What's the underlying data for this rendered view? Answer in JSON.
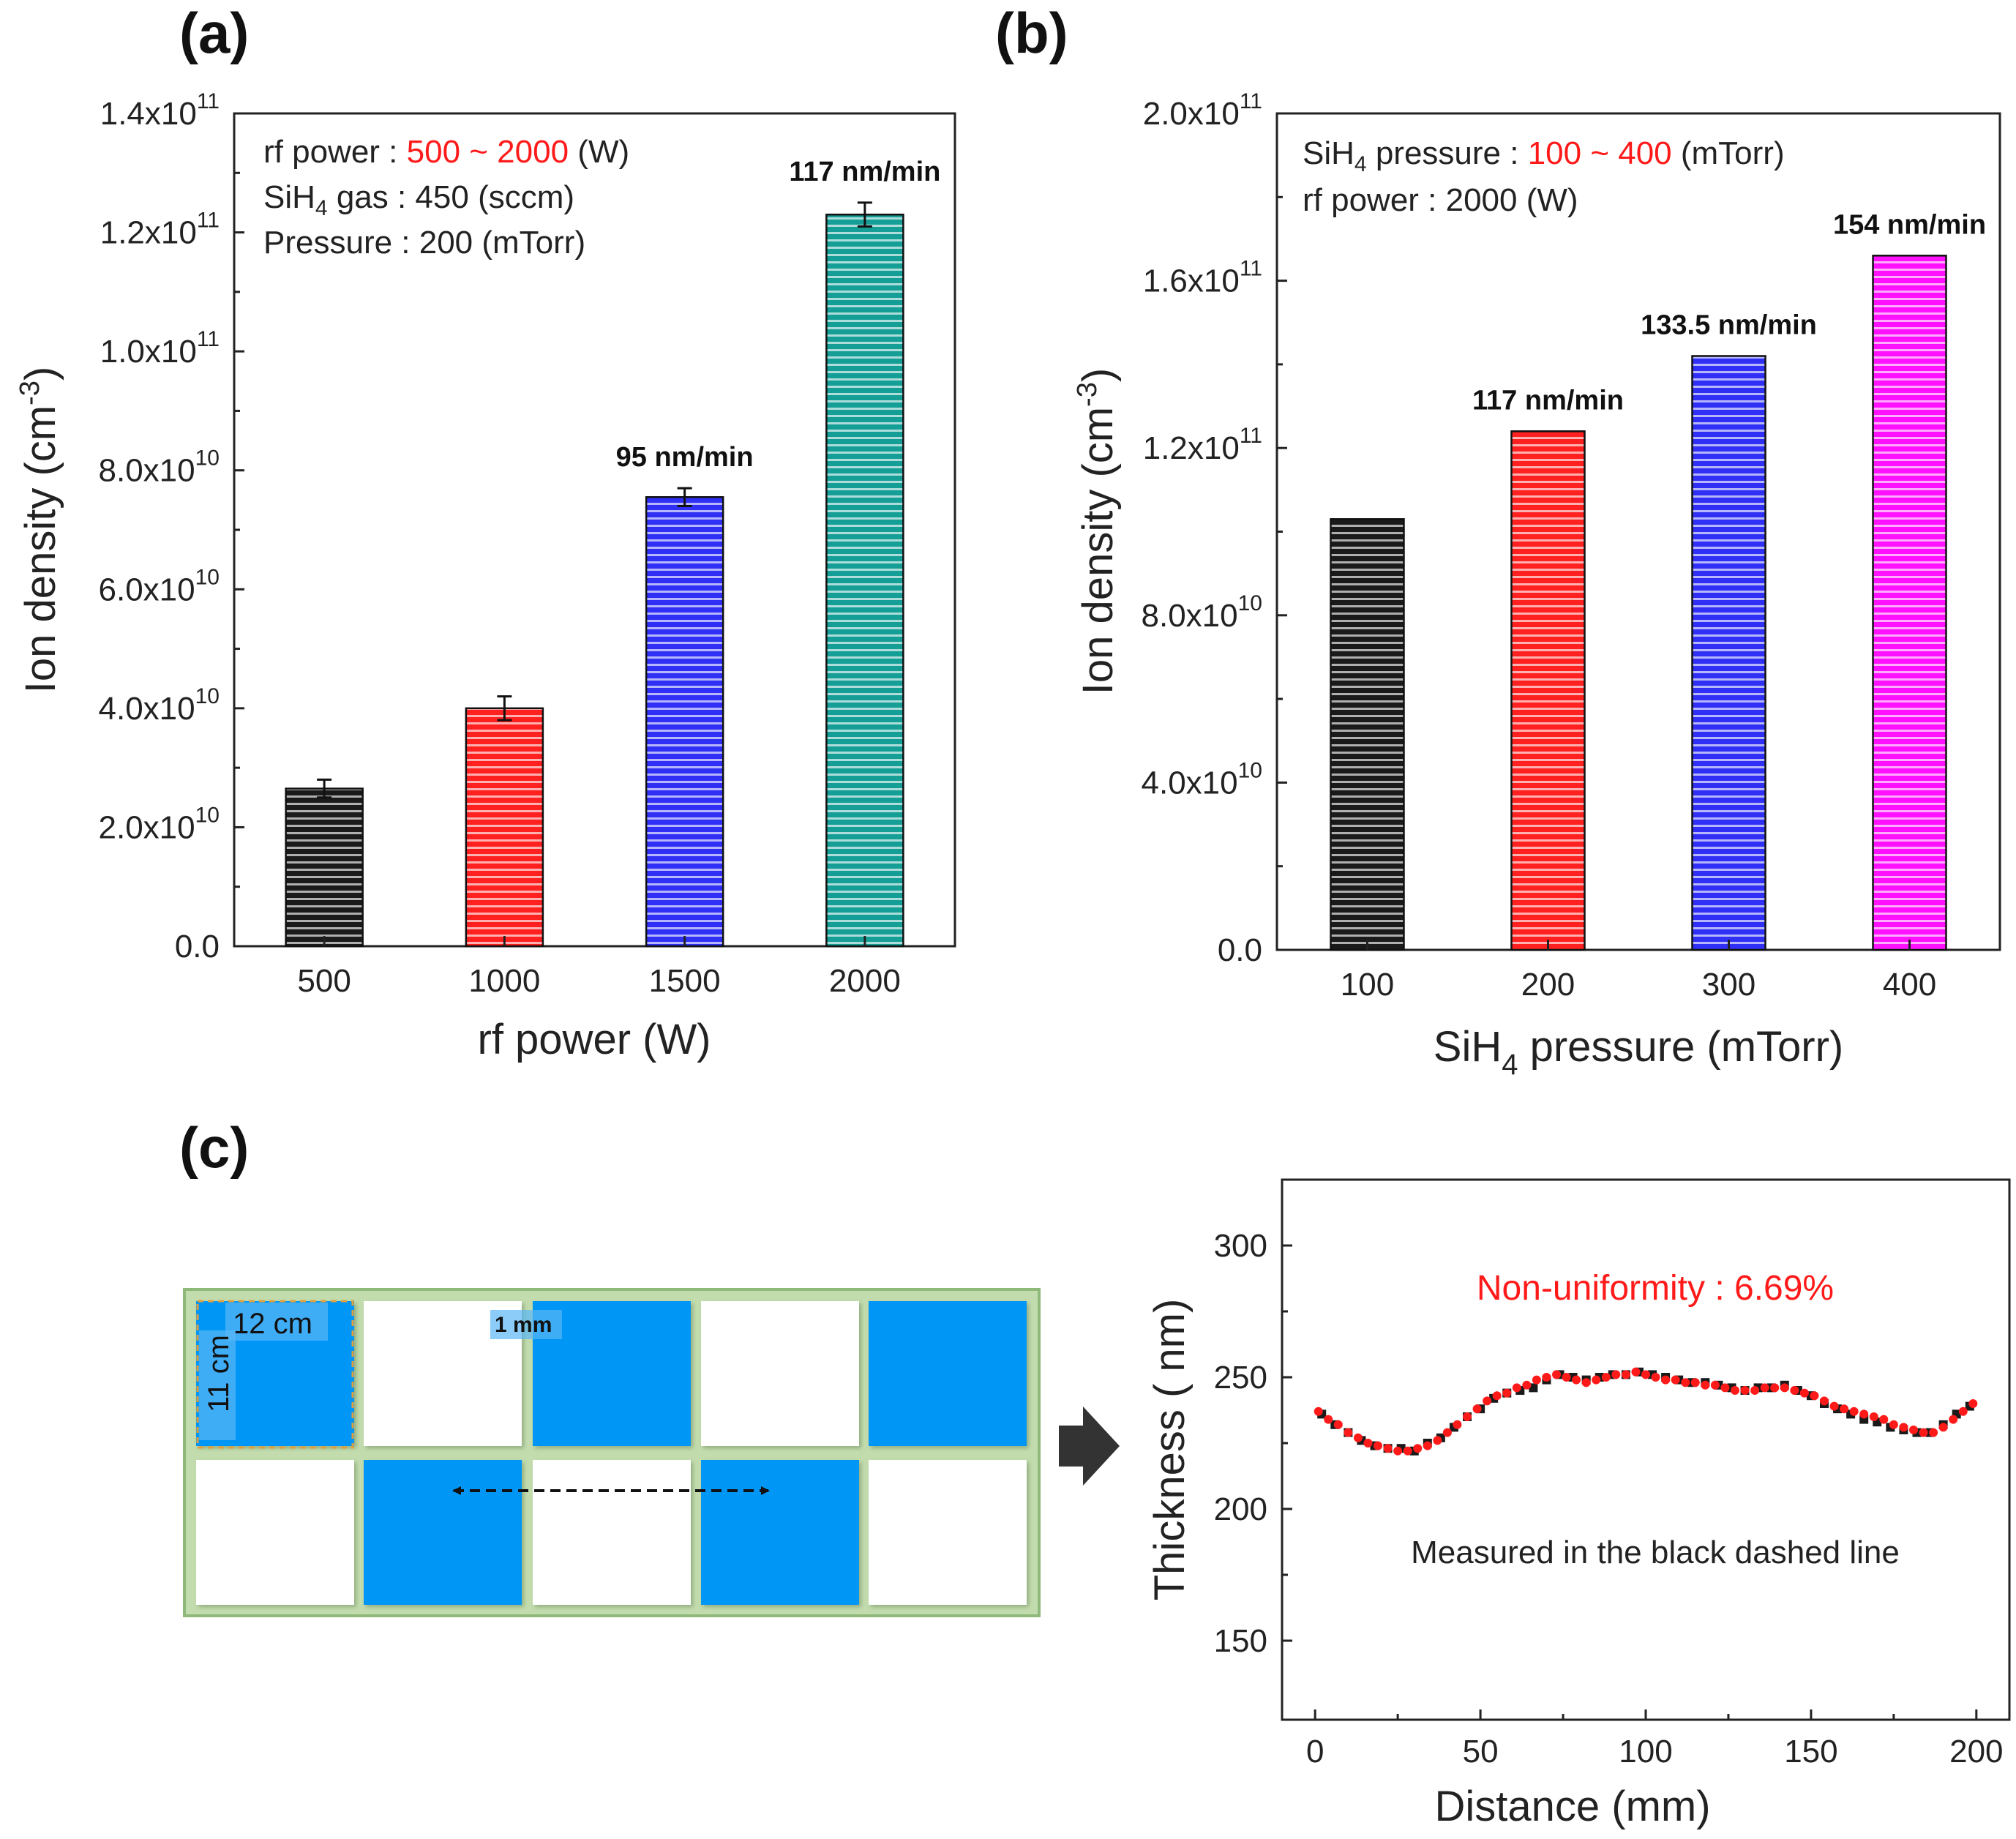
{
  "colors": {
    "black": "#1a1a1a",
    "red": "#ff2020",
    "blue": "#2f2ff5",
    "teal": "#159e96",
    "magenta": "#ff10ff",
    "tile_blue": "#0096f5",
    "mat_green": "#c3dcae",
    "highlight_red": "#ff1a1a"
  },
  "panel_a": {
    "label": "(a)"
  },
  "panel_b": {
    "label": "(b)"
  },
  "panel_c": {
    "label": "(c)"
  },
  "chart_data": [
    {
      "id": "a",
      "type": "bar",
      "categories": [
        "500",
        "1000",
        "1500",
        "2000"
      ],
      "values": [
        26500000000.0,
        40000000000.0,
        75500000000.0,
        123000000000.0
      ],
      "errors": [
        1500000000.0,
        2000000000.0,
        1500000000.0,
        2000000000.0
      ],
      "bar_colors": [
        "#1a1a1a",
        "#ff2020",
        "#2f2ff5",
        "#159e96"
      ],
      "bar_annotations": [
        "",
        "",
        "95 nm/min",
        "117 nm/min"
      ],
      "xlabel": "rf power (W)",
      "ylabel": "Ion density (cm",
      "ylabel_sup": "-3",
      "ylabel_end": ")",
      "ylim": [
        0,
        140000000000.0
      ],
      "yticks": [
        0,
        20000000000.0,
        40000000000.0,
        60000000000.0,
        80000000000.0,
        100000000000.0,
        120000000000.0,
        140000000000.0
      ],
      "ytick_labels": [
        {
          "base": "0.0",
          "exp": ""
        },
        {
          "base": "2.0x10",
          "exp": "10"
        },
        {
          "base": "4.0x10",
          "exp": "10"
        },
        {
          "base": "6.0x10",
          "exp": "10"
        },
        {
          "base": "8.0x10",
          "exp": "10"
        },
        {
          "base": "1.0x10",
          "exp": "11"
        },
        {
          "base": "1.2x10",
          "exp": "11"
        },
        {
          "base": "1.4x10",
          "exp": "11"
        }
      ],
      "conditions": [
        {
          "text": "rf power : ",
          "red": "500 ~ 2000",
          "after": " (W)"
        },
        {
          "pre": "SiH",
          "sub": "4",
          "post": " gas : 450 (sccm)"
        },
        {
          "text": "Pressure : 200 (mTorr)"
        }
      ]
    },
    {
      "id": "b",
      "type": "bar",
      "categories": [
        "100",
        "200",
        "300",
        "400"
      ],
      "values": [
        103000000000.0,
        124000000000.0,
        142000000000.0,
        166000000000.0
      ],
      "bar_colors": [
        "#1a1a1a",
        "#ff2020",
        "#2f2ff5",
        "#ff10ff"
      ],
      "bar_annotations": [
        "",
        "117 nm/min",
        "133.5 nm/min",
        "154 nm/min"
      ],
      "xlabel_pre": "SiH",
      "xlabel_sub": "4",
      "xlabel_post": " pressure (mTorr)",
      "ylabel": "Ion density (cm",
      "ylabel_sup": "-3",
      "ylabel_end": ")",
      "ylim": [
        0,
        200000000000.0
      ],
      "yticks": [
        0,
        40000000000.0,
        80000000000.0,
        120000000000.0,
        160000000000.0,
        200000000000.0
      ],
      "ytick_labels": [
        {
          "base": "0.0",
          "exp": ""
        },
        {
          "base": "4.0x10",
          "exp": "10"
        },
        {
          "base": "8.0x10",
          "exp": "10"
        },
        {
          "base": "1.2x10",
          "exp": "11"
        },
        {
          "base": "1.6x10",
          "exp": "11"
        },
        {
          "base": "2.0x10",
          "exp": "11"
        }
      ],
      "conditions": [
        {
          "pre": "SiH",
          "sub": "4",
          "post": " pressure : ",
          "red": "100 ~ 400",
          "after": " (mTorr)"
        },
        {
          "text": "rf power : 2000 (W)"
        }
      ]
    },
    {
      "id": "c",
      "type": "scatter",
      "xlabel": "Distance (mm)",
      "ylabel": "Thickness ( nm)",
      "xlim": [
        -10,
        210
      ],
      "ylim": [
        120,
        325
      ],
      "xticks": [
        0,
        50,
        100,
        150,
        200
      ],
      "yticks": [
        150,
        200,
        250,
        300
      ],
      "annotation": "Non-uniformity : 6.69%",
      "note": "Measured in the black dashed line",
      "series": [
        {
          "name": "black",
          "color": "#1a1a1a",
          "marker": "square",
          "x": [
            2,
            6,
            10,
            14,
            18,
            22,
            26,
            30,
            34,
            38,
            42,
            46,
            50,
            54,
            58,
            62,
            66,
            70,
            74,
            78,
            82,
            86,
            90,
            94,
            98,
            102,
            106,
            110,
            114,
            118,
            122,
            126,
            130,
            134,
            138,
            142,
            146,
            150,
            154,
            158,
            162,
            166,
            170,
            174,
            178,
            182,
            186,
            190,
            194,
            198
          ],
          "y": [
            236,
            232,
            229,
            226,
            224,
            223,
            223,
            222,
            225,
            227,
            231,
            235,
            238,
            242,
            244,
            245,
            246,
            249,
            251,
            250,
            249,
            250,
            251,
            251,
            252,
            251,
            250,
            249,
            248,
            248,
            247,
            246,
            245,
            246,
            246,
            247,
            245,
            243,
            240,
            238,
            236,
            234,
            233,
            231,
            230,
            229,
            229,
            232,
            236,
            239
          ]
        },
        {
          "name": "red",
          "color": "#ff1a1a",
          "marker": "circle",
          "x": [
            1,
            4,
            7,
            10,
            13,
            16,
            19,
            22,
            25,
            28,
            31,
            34,
            37,
            40,
            43,
            46,
            49,
            52,
            55,
            58,
            61,
            64,
            67,
            70,
            73,
            76,
            79,
            82,
            85,
            88,
            91,
            94,
            97,
            100,
            103,
            106,
            109,
            112,
            115,
            118,
            121,
            124,
            127,
            130,
            133,
            136,
            139,
            142,
            145,
            148,
            151,
            154,
            157,
            160,
            163,
            166,
            169,
            172,
            175,
            178,
            181,
            184,
            187,
            190,
            193,
            196,
            199
          ],
          "y": [
            237,
            234,
            232,
            229,
            227,
            225,
            224,
            223,
            222,
            222,
            223,
            224,
            226,
            229,
            232,
            235,
            238,
            241,
            243,
            244,
            246,
            247,
            249,
            250,
            251,
            250,
            249,
            248,
            249,
            250,
            251,
            251,
            252,
            251,
            250,
            249,
            249,
            248,
            248,
            247,
            247,
            246,
            245,
            245,
            245,
            246,
            246,
            246,
            245,
            244,
            243,
            241,
            239,
            238,
            237,
            236,
            235,
            234,
            232,
            231,
            230,
            229,
            229,
            231,
            234,
            237,
            240
          ]
        }
      ]
    }
  ],
  "diagram": {
    "dim_width": "12 cm",
    "dim_height": "11 cm",
    "gap_label": "1 mm"
  }
}
